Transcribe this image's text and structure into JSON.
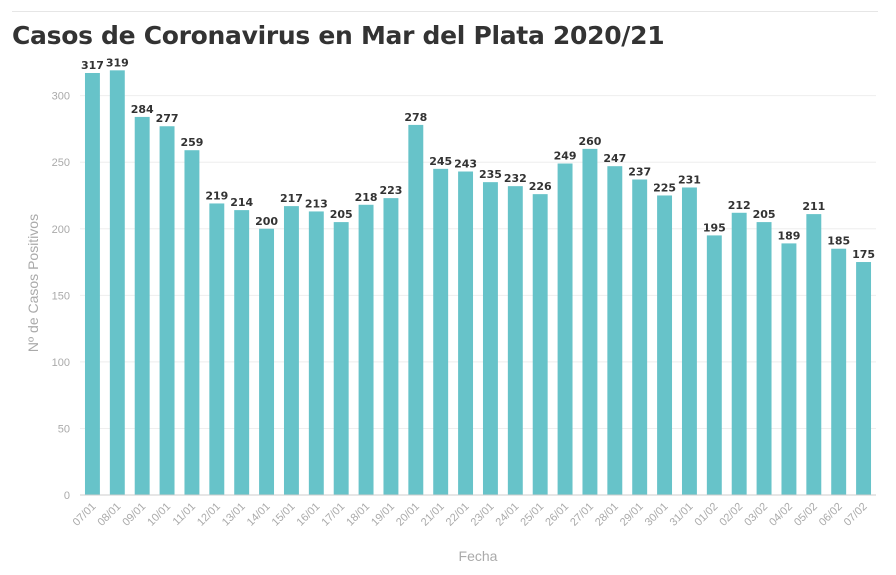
{
  "title": "Casos de Coronavirus en Mar del Plata 2020/21",
  "chart_data": {
    "type": "bar",
    "title": "Casos de Coronavirus en Mar del Plata 2020/21",
    "xlabel": "Fecha",
    "ylabel": "Nº de Casos Positivos",
    "ylim": [
      0,
      320
    ],
    "yticks": [
      0,
      50,
      100,
      150,
      200,
      250,
      300
    ],
    "grid": true,
    "bar_color": "#67c3c9",
    "categories": [
      "07/01",
      "08/01",
      "09/01",
      "10/01",
      "11/01",
      "12/01",
      "13/01",
      "14/01",
      "15/01",
      "16/01",
      "17/01",
      "18/01",
      "19/01",
      "20/01",
      "21/01",
      "22/01",
      "23/01",
      "24/01",
      "25/01",
      "26/01",
      "27/01",
      "28/01",
      "29/01",
      "30/01",
      "31/01",
      "01/02",
      "02/02",
      "03/02",
      "04/02",
      "05/02",
      "06/02",
      "07/02"
    ],
    "values": [
      317,
      319,
      284,
      277,
      259,
      219,
      214,
      200,
      217,
      213,
      205,
      218,
      223,
      278,
      245,
      243,
      235,
      232,
      226,
      249,
      260,
      247,
      237,
      225,
      231,
      195,
      212,
      205,
      189,
      211,
      185,
      175
    ]
  }
}
